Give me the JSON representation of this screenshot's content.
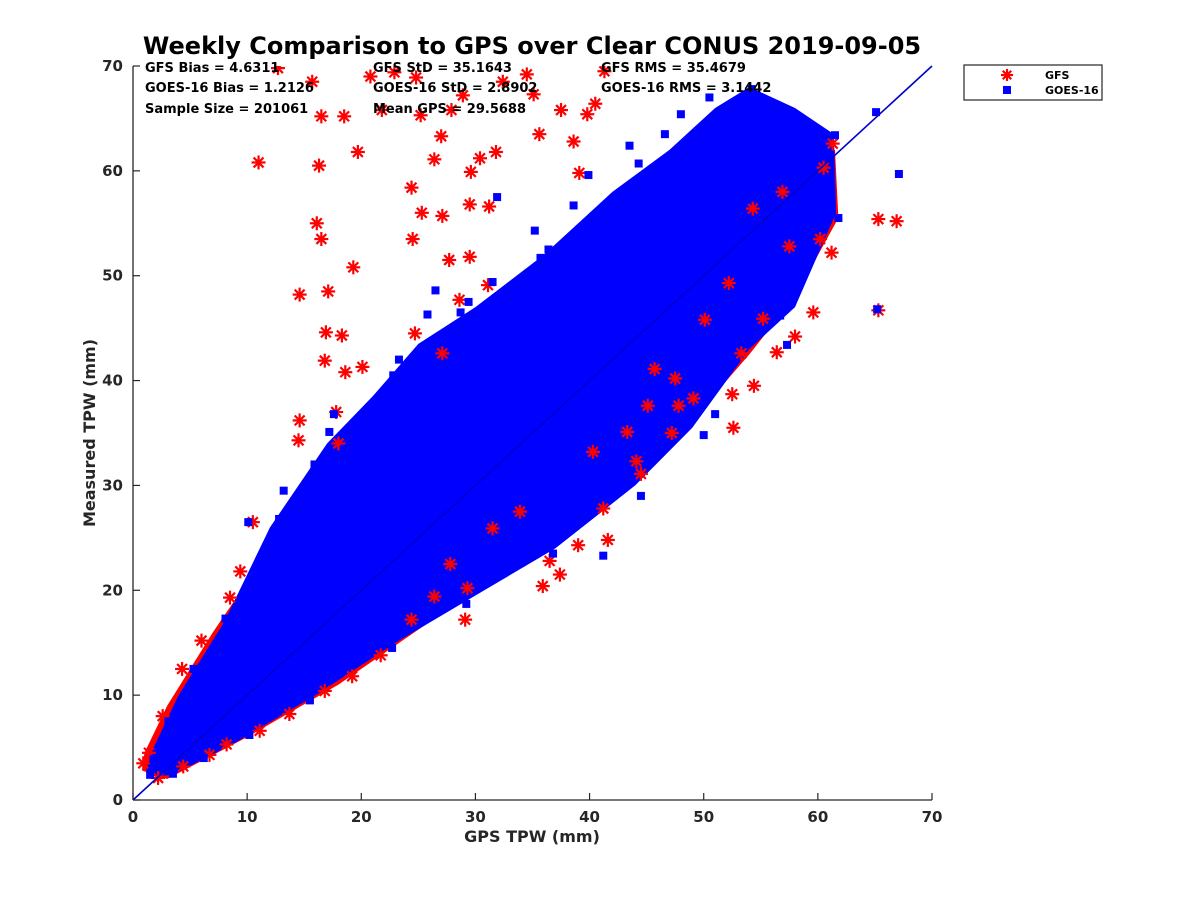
{
  "chart_data": {
    "type": "scatter",
    "title": "Weekly Comparison to GPS over Clear CONUS 2019-09-05",
    "xlabel": "GPS TPW (mm)",
    "ylabel": "Measured TPW (mm)",
    "xlim": [
      0,
      70
    ],
    "ylim": [
      0,
      70
    ],
    "xticks": [
      0,
      10,
      20,
      30,
      40,
      50,
      60,
      70
    ],
    "yticks": [
      0,
      10,
      20,
      30,
      40,
      50,
      60,
      70
    ],
    "grid": false,
    "legend_position": "outside-top-right",
    "reference_line": {
      "from": [
        0,
        0
      ],
      "to": [
        70,
        70
      ],
      "color": "#0000cc"
    },
    "stats": [
      {
        "label": "GFS Bias = 4.6311"
      },
      {
        "label": "GFS StD = 35.1643"
      },
      {
        "label": "GFS RMS = 35.4679"
      },
      {
        "label": "GOES-16 Bias = 1.2126"
      },
      {
        "label": "GOES-16 StD = 2.8902"
      },
      {
        "label": "GOES-16 RMS = 3.1442"
      },
      {
        "label": "Sample Size = 201061"
      },
      {
        "label": "Mean GPS = 29.5688"
      }
    ],
    "series": [
      {
        "name": "GFS",
        "marker": "asterisk",
        "color": "#ff0000",
        "points": [
          [
            11,
            60.8
          ],
          [
            12.7,
            69.8
          ],
          [
            15.7,
            68.5
          ],
          [
            16.5,
            65.2
          ],
          [
            16.3,
            60.5
          ],
          [
            18.5,
            65.2
          ],
          [
            19.7,
            61.8
          ],
          [
            20.8,
            69
          ],
          [
            21.8,
            65.8
          ],
          [
            22.9,
            69.4
          ],
          [
            24.8,
            68.9
          ],
          [
            25.2,
            65.3
          ],
          [
            26.4,
            61.1
          ],
          [
            27,
            63.3
          ],
          [
            27.9,
            65.8
          ],
          [
            28.9,
            67.2
          ],
          [
            29.6,
            59.9
          ],
          [
            30.4,
            61.2
          ],
          [
            31.8,
            61.8
          ],
          [
            32.4,
            68.5
          ],
          [
            34.5,
            69.2
          ],
          [
            35.1,
            67.3
          ],
          [
            35.6,
            63.5
          ],
          [
            37.5,
            65.8
          ],
          [
            38.6,
            62.8
          ],
          [
            39.1,
            59.8
          ],
          [
            39.8,
            65.4
          ],
          [
            40.5,
            66.4
          ],
          [
            41.3,
            69.5
          ],
          [
            24.4,
            58.4
          ],
          [
            25.3,
            56
          ],
          [
            27.1,
            55.7
          ],
          [
            29.5,
            56.8
          ],
          [
            31.2,
            56.6
          ],
          [
            16.1,
            55
          ],
          [
            16.5,
            53.5
          ],
          [
            14.6,
            48.2
          ],
          [
            17.1,
            48.5
          ],
          [
            19.3,
            50.8
          ],
          [
            24.5,
            53.5
          ],
          [
            27.7,
            51.5
          ],
          [
            29.5,
            51.8
          ],
          [
            31.1,
            49.1
          ],
          [
            14.6,
            36.2
          ],
          [
            14.5,
            34.3
          ],
          [
            16.9,
            44.6
          ],
          [
            18.3,
            44.3
          ],
          [
            16.8,
            41.9
          ],
          [
            18.6,
            40.8
          ],
          [
            17.8,
            37
          ],
          [
            18,
            34
          ],
          [
            10.5,
            26.5
          ],
          [
            8.5,
            19.3
          ],
          [
            9.4,
            21.8
          ],
          [
            6,
            15.2
          ],
          [
            4.3,
            12.5
          ],
          [
            2.6,
            8
          ],
          [
            1.4,
            4.5
          ],
          [
            0.9,
            3.5
          ],
          [
            24.7,
            44.5
          ],
          [
            27.1,
            42.6
          ],
          [
            28.6,
            47.7
          ],
          [
            20.1,
            41.3
          ],
          [
            54.3,
            56.4
          ],
          [
            56.9,
            58
          ],
          [
            60.5,
            60.3
          ],
          [
            61.3,
            62.6
          ],
          [
            61.2,
            52.2
          ],
          [
            60.2,
            53.5
          ],
          [
            59.6,
            46.5
          ],
          [
            65.3,
            46.7
          ],
          [
            65.3,
            55.4
          ],
          [
            66.9,
            55.2
          ],
          [
            57.5,
            52.8
          ],
          [
            55.2,
            45.9
          ],
          [
            56.4,
            42.7
          ],
          [
            58,
            44.2
          ],
          [
            53.3,
            42.6
          ],
          [
            54.4,
            39.5
          ],
          [
            52.5,
            38.7
          ],
          [
            47.8,
            37.6
          ],
          [
            45.1,
            37.6
          ],
          [
            49.1,
            38.3
          ],
          [
            47.2,
            35
          ],
          [
            52.6,
            35.5
          ],
          [
            44.5,
            31.1
          ],
          [
            44.1,
            32.3
          ],
          [
            41.2,
            27.8
          ],
          [
            41.6,
            24.8
          ],
          [
            39,
            24.3
          ],
          [
            37.4,
            21.5
          ],
          [
            36.5,
            22.8
          ],
          [
            35.9,
            20.4
          ],
          [
            29.1,
            17.2
          ],
          [
            29.3,
            20.2
          ],
          [
            26.4,
            19.4
          ],
          [
            24.4,
            17.2
          ],
          [
            21.7,
            13.8
          ],
          [
            19.2,
            11.8
          ],
          [
            16.8,
            10.4
          ],
          [
            13.7,
            8.2
          ],
          [
            11.1,
            6.6
          ],
          [
            8.2,
            5.3
          ],
          [
            6.7,
            4.3
          ],
          [
            4.4,
            3.2
          ],
          [
            2.2,
            2.1
          ],
          [
            45.7,
            41.1
          ],
          [
            50.1,
            45.8
          ],
          [
            52.2,
            49.3
          ],
          [
            47.5,
            40.2
          ],
          [
            43.3,
            35.1
          ],
          [
            40.3,
            33.2
          ],
          [
            33.9,
            27.5
          ],
          [
            31.5,
            25.9
          ],
          [
            27.8,
            22.5
          ]
        ]
      },
      {
        "name": "GOES-16",
        "marker": "square",
        "color": "#0000ff",
        "points": [
          [
            65.1,
            65.6
          ],
          [
            67.1,
            59.7
          ],
          [
            65.2,
            46.8
          ],
          [
            57.3,
            43.4
          ],
          [
            50,
            34.8
          ],
          [
            41.2,
            23.3
          ],
          [
            10.1,
            26.5
          ],
          [
            35.7,
            51.7
          ],
          [
            36.4,
            52.5
          ],
          [
            33.8,
            48.2
          ],
          [
            31.9,
            57.5
          ],
          [
            29.4,
            47.5
          ],
          [
            25.8,
            46.3
          ],
          [
            21.1,
            37.8
          ],
          [
            17.6,
            36.8
          ],
          [
            15.9,
            32
          ],
          [
            13.2,
            29.5
          ],
          [
            11.1,
            22.6
          ],
          [
            8.1,
            17.3
          ],
          [
            5.3,
            12.5
          ],
          [
            3.1,
            7.5
          ],
          [
            1.8,
            3.9
          ],
          [
            1.5,
            2.4
          ],
          [
            3.5,
            2.5
          ],
          [
            6.2,
            4
          ],
          [
            10.2,
            6.2
          ],
          [
            15.5,
            9.5
          ],
          [
            22.7,
            14.5
          ],
          [
            29.2,
            18.7
          ],
          [
            36.8,
            23.5
          ],
          [
            44.5,
            29
          ],
          [
            51,
            36.8
          ],
          [
            56.7,
            46.2
          ],
          [
            61.8,
            55.5
          ],
          [
            61.5,
            63.4
          ],
          [
            57.6,
            64.7
          ],
          [
            54.2,
            67.8
          ],
          [
            50.5,
            67
          ],
          [
            46.6,
            63.5
          ],
          [
            43.5,
            62.4
          ],
          [
            39.9,
            59.6
          ],
          [
            35.2,
            54.3
          ],
          [
            28.7,
            46.5
          ],
          [
            23.3,
            42
          ],
          [
            17.2,
            35.1
          ],
          [
            12.8,
            26.8
          ],
          [
            26.5,
            48.6
          ],
          [
            31.5,
            49.4
          ],
          [
            38.6,
            56.7
          ],
          [
            53.6,
            57.2
          ],
          [
            59.7,
            59.2
          ],
          [
            46.3,
            58.1
          ],
          [
            44.3,
            60.7
          ],
          [
            48,
            65.4
          ],
          [
            37.1,
            46
          ],
          [
            27.1,
            31.2
          ],
          [
            20.4,
            26
          ],
          [
            14.3,
            16
          ],
          [
            9.1,
            11.5
          ],
          [
            42,
            37.5
          ],
          [
            48.9,
            47.4
          ],
          [
            22.8,
            40.5
          ],
          [
            30.4,
            43.8
          ],
          [
            18.5,
            33.5
          ],
          [
            54.9,
            50.6
          ],
          [
            34.1,
            35.2
          ]
        ]
      }
    ]
  }
}
